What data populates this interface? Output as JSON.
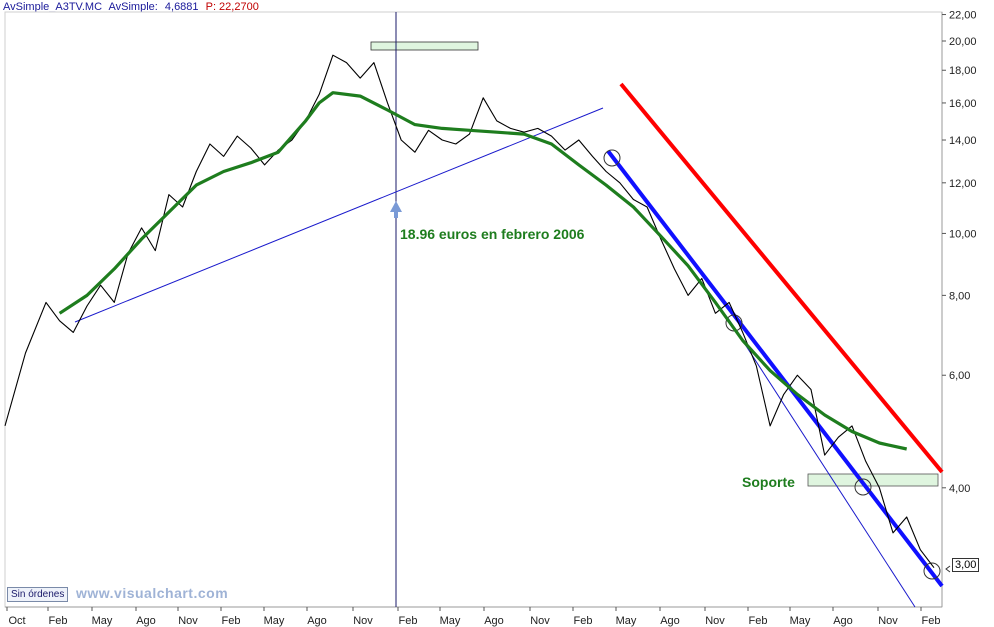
{
  "header": {
    "instrument": "AvSimple_A3TV.MC",
    "indicator_label": "AvSimple:",
    "indicator_value": "4,6881",
    "price_label": "P: 22,2700"
  },
  "footer": {
    "orders_button": "Sin órdenes",
    "watermark": "www.visualchart.com"
  },
  "last_price_marker": "3,00",
  "colors": {
    "price": "#000000",
    "moving_average": "#1e7d1e",
    "resistance_line": "#ff0000",
    "support_channel": "#1010ff",
    "trend_line": "#1a1acc",
    "annotation_text": "#1e7d1e",
    "highlight_box": "#dff5df"
  },
  "chart_data": {
    "type": "line",
    "y_scale": "log",
    "ylim": [
      3.0,
      22.0
    ],
    "y_ticks": [
      "22,00",
      "20,00",
      "18,00",
      "16,00",
      "14,00",
      "12,00",
      "10,00",
      "8,00",
      "6,00",
      "4,00"
    ],
    "x_ticks": [
      "Oct",
      "Feb",
      "May",
      "Ago",
      "Nov",
      "Feb",
      "May",
      "Ago",
      "Nov",
      "Feb",
      "May",
      "Ago",
      "Nov",
      "Feb",
      "May",
      "Ago",
      "Nov",
      "Feb",
      "May",
      "Ago",
      "Nov",
      "Feb"
    ],
    "series": [
      {
        "name": "A3TV.MC",
        "style": "price",
        "x": [
          0,
          1.5,
          3,
          4,
          5,
          6,
          7,
          8,
          9,
          10,
          11,
          12,
          13,
          14,
          15,
          16,
          17,
          18,
          19,
          20,
          21,
          22,
          23,
          24,
          25,
          26,
          27,
          28,
          29,
          30,
          31,
          32,
          33,
          34,
          35,
          36,
          37,
          38,
          39,
          40,
          41,
          42,
          43,
          44,
          45,
          46,
          47,
          48,
          49,
          50,
          51,
          52,
          53,
          54,
          55,
          56,
          57,
          58,
          59,
          60,
          61,
          62,
          63,
          64,
          65,
          66,
          67,
          68
        ],
        "y": [
          5.0,
          6.5,
          7.8,
          7.3,
          7.0,
          7.7,
          8.3,
          7.8,
          9.3,
          10.2,
          9.4,
          11.5,
          11.0,
          12.5,
          13.8,
          13.2,
          14.2,
          13.6,
          12.8,
          13.5,
          14.0,
          15.0,
          16.5,
          19.0,
          18.5,
          17.5,
          18.5,
          16.0,
          14.0,
          13.4,
          14.5,
          14.0,
          13.8,
          14.3,
          16.3,
          15.0,
          14.6,
          14.4,
          14.6,
          14.2,
          13.5,
          14.0,
          13.2,
          12.5,
          12.0,
          11.3,
          11.0,
          9.8,
          8.8,
          8.0,
          8.5,
          7.5,
          7.8,
          7.0,
          6.2,
          5.0,
          5.6,
          6.0,
          5.7,
          4.5,
          4.8,
          5.0,
          4.4,
          4.0,
          3.4,
          3.6,
          3.2,
          3.0
        ]
      },
      {
        "name": "AvSimple",
        "style": "ma",
        "x": [
          4,
          6,
          8,
          10,
          12,
          14,
          16,
          18,
          20,
          22,
          23,
          24,
          26,
          28,
          30,
          32,
          34,
          36,
          38,
          40,
          42,
          44,
          46,
          48,
          50,
          52,
          54,
          56,
          58,
          60,
          62,
          64,
          66
        ],
        "y": [
          7.5,
          8.0,
          8.8,
          9.8,
          10.8,
          11.9,
          12.5,
          12.9,
          13.4,
          15.0,
          16.0,
          16.6,
          16.4,
          15.6,
          14.8,
          14.6,
          14.5,
          14.4,
          14.3,
          13.8,
          12.8,
          11.9,
          11.0,
          9.9,
          8.9,
          7.8,
          6.8,
          6.1,
          5.6,
          5.2,
          4.9,
          4.7,
          4.6
        ]
      }
    ],
    "annotations": [
      {
        "text": "18.96 euros en febrero 2006"
      },
      {
        "text": "Soporte"
      }
    ]
  }
}
